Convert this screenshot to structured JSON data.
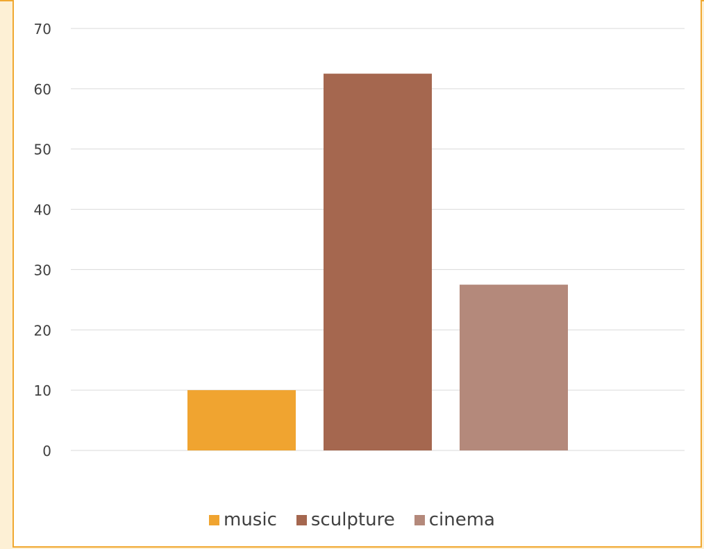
{
  "chart_data": {
    "type": "bar",
    "categories": [
      "music",
      "sculpture",
      "cinema"
    ],
    "values": [
      10,
      62.5,
      27.5
    ],
    "colors": [
      "#f0a430",
      "#a5674f",
      "#b4897b"
    ],
    "ylim": [
      0,
      70
    ],
    "yticks": [
      0,
      10,
      20,
      30,
      40,
      50,
      60,
      70
    ],
    "grid": true,
    "legend": "bottom",
    "title": "",
    "xlabel": "",
    "ylabel": ""
  }
}
